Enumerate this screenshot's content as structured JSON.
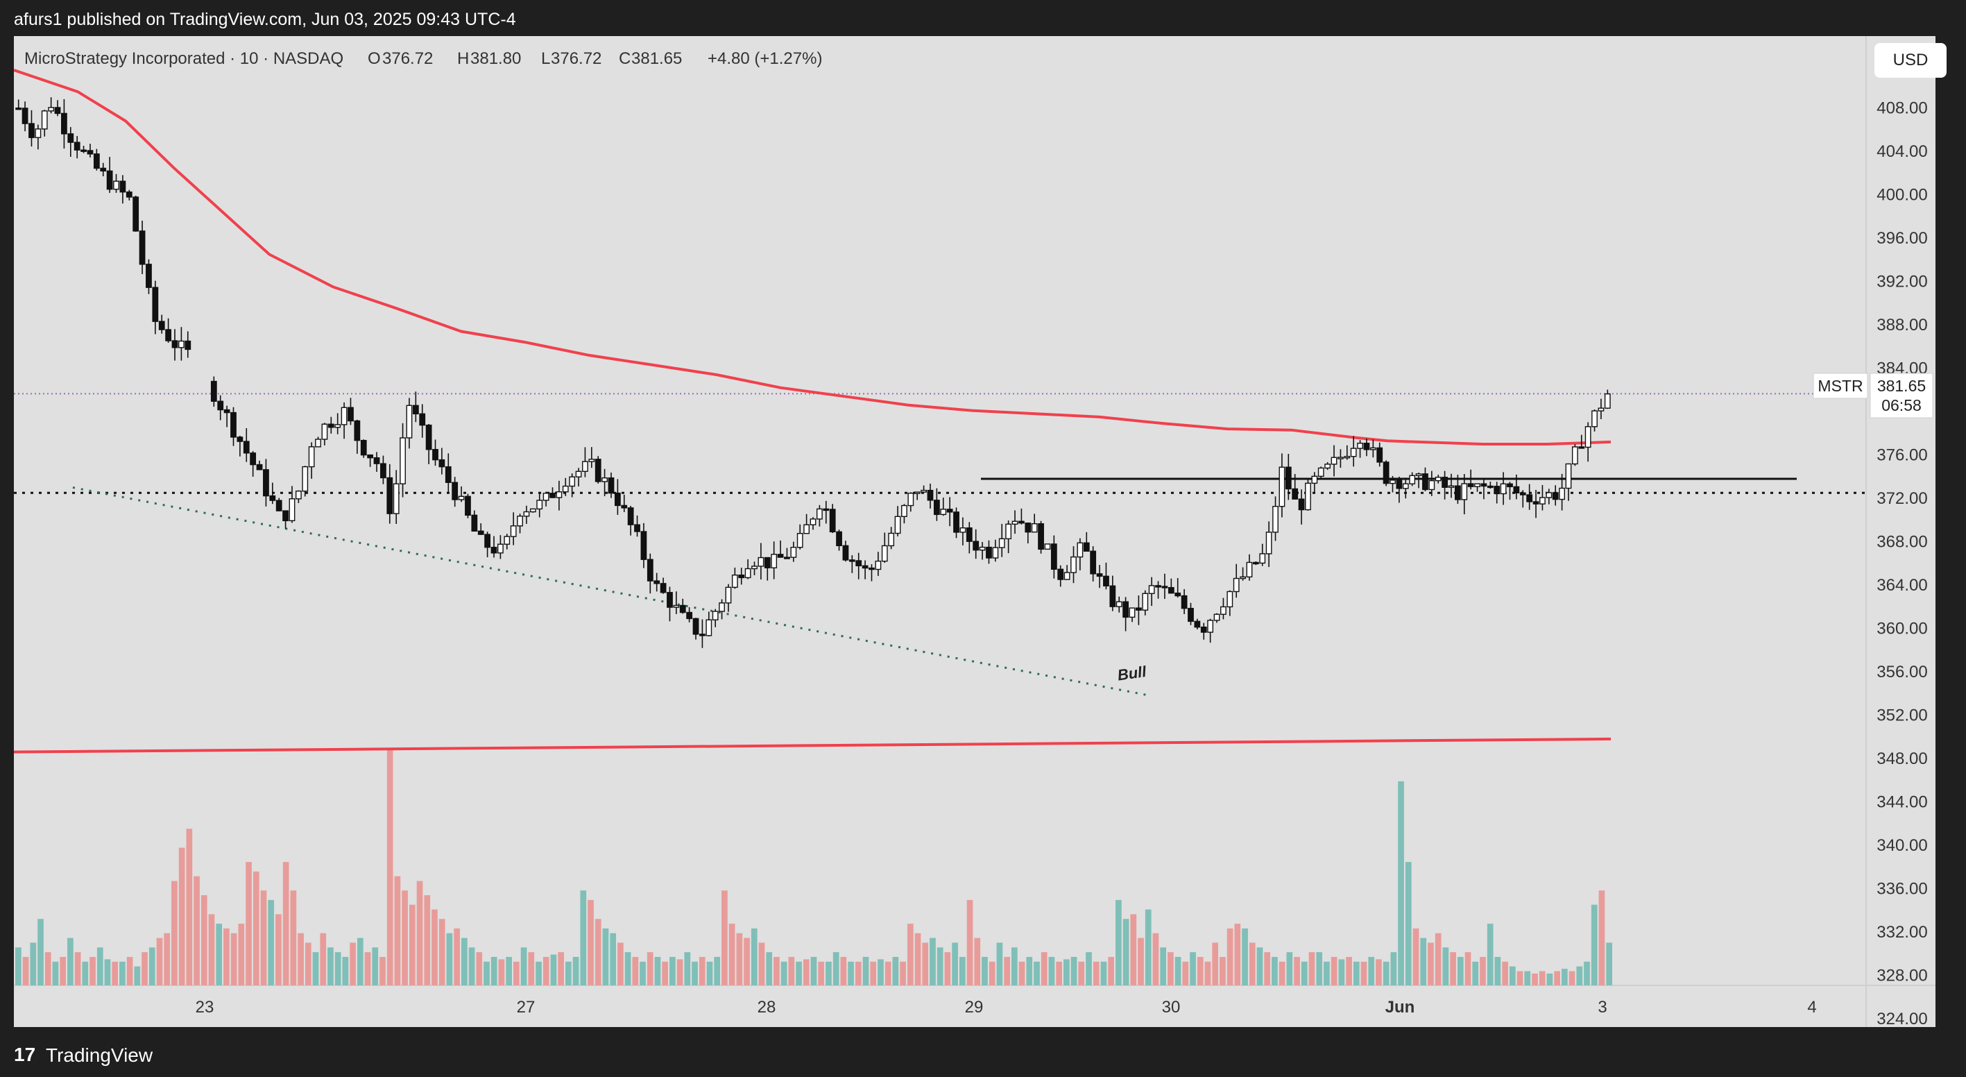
{
  "header": {
    "published_by": "afurs1 published on TradingView.com, Jun 03, 2025 09:43 UTC-4"
  },
  "footer": {
    "brand": "TradingView",
    "logo_glyph": "17"
  },
  "currency_button": "USD",
  "price_label": {
    "symbol": "MSTR",
    "price": "381.65",
    "countdown": "06:58"
  },
  "colors": {
    "bg": "#e0e0e0",
    "up_volume": "#7fbfb8",
    "down_volume": "#e89c9a",
    "ma": "#f0414d",
    "trend": "#2f6b55",
    "text": "#333333",
    "price_line": "#9a6bb0"
  },
  "chart_data": {
    "type": "candlestick",
    "instrument": "MicroStrategy Incorporated · 10 · NASDAQ",
    "ohlc_legend": {
      "open": "376.72",
      "high": "381.80",
      "low": "376.72",
      "close": "381.65",
      "change": "+4.80 (+1.27%)"
    },
    "y_axis": {
      "ticks": [
        408,
        404,
        400,
        396,
        392,
        388,
        384,
        376,
        372,
        368,
        364,
        360,
        356,
        352,
        348,
        344,
        340,
        336,
        332,
        328,
        324
      ],
      "range": [
        324,
        411.5
      ],
      "tick_format": "fixed2"
    },
    "x_axis": {
      "labels": [
        "23",
        "27",
        "28",
        "29",
        "30",
        "Jun",
        "3",
        "4"
      ]
    },
    "annotations": {
      "bull_text": "Bull",
      "support_dotted_level": 372.5,
      "resistance_solid_level": 373.8,
      "current_price_line": 381.65,
      "long_ma_level": 349.8,
      "bull_trendline": {
        "from": 373.0,
        "to": 353.8
      }
    },
    "ma_series": {
      "name": "",
      "t": [
        0,
        0.04,
        0.07,
        0.1,
        0.13,
        0.16,
        0.2,
        0.24,
        0.28,
        0.32,
        0.36,
        0.4,
        0.44,
        0.48,
        0.52,
        0.56,
        0.6,
        0.64,
        0.68,
        0.72,
        0.76,
        0.8,
        0.84,
        0.86,
        0.88,
        0.92,
        0.96,
        1.0
      ],
      "v": [
        411.5,
        409.5,
        406.8,
        402.5,
        398.5,
        394.5,
        391.5,
        389.5,
        387.4,
        386.4,
        385.2,
        384.3,
        383.4,
        382.2,
        381.4,
        380.6,
        380.1,
        379.8,
        379.5,
        378.9,
        378.4,
        378.3,
        377.6,
        377.3,
        377.2,
        377.0,
        377.0,
        377.2
      ]
    },
    "price_series": {
      "t": [
        0.0,
        0.01,
        0.02,
        0.03,
        0.045,
        0.055,
        0.07,
        0.085,
        0.1,
        0.11,
        0.12,
        0.135,
        0.15,
        0.165,
        0.175,
        0.185,
        0.195,
        0.205,
        0.215,
        0.225,
        0.235,
        0.245,
        0.26,
        0.275,
        0.29,
        0.305,
        0.315,
        0.33,
        0.345,
        0.36,
        0.375,
        0.39,
        0.4,
        0.41,
        0.42,
        0.43,
        0.44,
        0.45,
        0.46,
        0.475,
        0.49,
        0.505,
        0.52,
        0.535,
        0.55,
        0.565,
        0.58,
        0.595,
        0.61,
        0.625,
        0.64,
        0.655,
        0.67,
        0.685,
        0.7,
        0.715,
        0.73,
        0.745,
        0.76,
        0.775,
        0.785,
        0.795,
        0.805,
        0.815,
        0.83,
        0.845,
        0.86,
        0.875,
        0.89,
        0.905,
        0.92,
        0.935,
        0.95,
        0.97,
        0.985,
        1.0
      ],
      "v": [
        408.0,
        405.5,
        408.6,
        406.0,
        403.0,
        401.5,
        399.5,
        388.5,
        386.0,
        385.0,
        382.5,
        378.5,
        374.5,
        370.0,
        372.0,
        377.5,
        379.0,
        380.0,
        377.0,
        375.5,
        370.5,
        381.0,
        376.0,
        372.5,
        368.0,
        367.0,
        371.0,
        371.5,
        374.0,
        375.0,
        372.5,
        368.0,
        364.0,
        362.5,
        360.5,
        359.5,
        362.0,
        364.5,
        366.5,
        366.0,
        367.5,
        372.0,
        367.0,
        365.0,
        369.0,
        373.0,
        371.0,
        368.5,
        367.0,
        370.5,
        369.0,
        365.0,
        367.5,
        363.0,
        361.0,
        364.0,
        362.5,
        360.0,
        363.0,
        365.5,
        367.0,
        374.5,
        371.0,
        373.5,
        375.5,
        378.0,
        374.0,
        373.5,
        373.5,
        372.5,
        373.0,
        373.0,
        372.0,
        372.5,
        378.0,
        381.65
      ]
    },
    "volume": {
      "heights": [
        0.16,
        0.12,
        0.18,
        0.28,
        0.14,
        0.1,
        0.12,
        0.2,
        0.14,
        0.1,
        0.12,
        0.16,
        0.11,
        0.1,
        0.1,
        0.12,
        0.08,
        0.14,
        0.16,
        0.2,
        0.22,
        0.44,
        0.58,
        0.66,
        0.46,
        0.38,
        0.3,
        0.26,
        0.24,
        0.22,
        0.26,
        0.52,
        0.48,
        0.4,
        0.36,
        0.3,
        0.52,
        0.4,
        0.22,
        0.18,
        0.14,
        0.22,
        0.16,
        0.14,
        0.12,
        0.18,
        0.2,
        0.14,
        0.16,
        0.12,
        1.0,
        0.46,
        0.4,
        0.34,
        0.44,
        0.38,
        0.32,
        0.28,
        0.22,
        0.24,
        0.2,
        0.16,
        0.14,
        0.1,
        0.12,
        0.11,
        0.12,
        0.1,
        0.16,
        0.14,
        0.1,
        0.12,
        0.13,
        0.14,
        0.1,
        0.12,
        0.4,
        0.36,
        0.28,
        0.24,
        0.22,
        0.18,
        0.14,
        0.12,
        0.1,
        0.14,
        0.12,
        0.1,
        0.12,
        0.11,
        0.14,
        0.1,
        0.12,
        0.1,
        0.12,
        0.4,
        0.26,
        0.22,
        0.2,
        0.24,
        0.18,
        0.14,
        0.12,
        0.1,
        0.12,
        0.1,
        0.11,
        0.12,
        0.1,
        0.1,
        0.14,
        0.12,
        0.1,
        0.1,
        0.12,
        0.1,
        0.11,
        0.1,
        0.12,
        0.1,
        0.26,
        0.22,
        0.18,
        0.2,
        0.16,
        0.14,
        0.18,
        0.12,
        0.36,
        0.2,
        0.12,
        0.1,
        0.18,
        0.12,
        0.16,
        0.1,
        0.12,
        0.1,
        0.14,
        0.12,
        0.1,
        0.11,
        0.12,
        0.1,
        0.14,
        0.1,
        0.1,
        0.12,
        0.36,
        0.28,
        0.3,
        0.2,
        0.32,
        0.22,
        0.16,
        0.14,
        0.12,
        0.1,
        0.14,
        0.12,
        0.1,
        0.18,
        0.12,
        0.24,
        0.26,
        0.24,
        0.18,
        0.16,
        0.14,
        0.12,
        0.1,
        0.14,
        0.12,
        0.1,
        0.14,
        0.14,
        0.1,
        0.12,
        0.11,
        0.12,
        0.1,
        0.1,
        0.12,
        0.11,
        0.1,
        0.14,
        0.86,
        0.52,
        0.24,
        0.2,
        0.18,
        0.22,
        0.16,
        0.14,
        0.12,
        0.14,
        0.1,
        0.12,
        0.26,
        0.12,
        0.1,
        0.08,
        0.06,
        0.06,
        0.05,
        0.06,
        0.05,
        0.06,
        0.07,
        0.06,
        0.08,
        0.1,
        0.34,
        0.4,
        0.18
      ],
      "up": [
        1,
        0,
        1,
        1,
        0,
        1,
        0,
        1,
        0,
        1,
        0,
        1,
        1,
        0,
        1,
        0,
        1,
        0,
        1,
        0,
        0,
        0,
        0,
        0,
        0,
        0,
        0,
        1,
        0,
        0,
        0,
        0,
        0,
        0,
        1,
        0,
        0,
        0,
        0,
        0,
        1,
        0,
        1,
        1,
        1,
        0,
        1,
        0,
        1,
        0,
        0,
        0,
        0,
        0,
        0,
        0,
        0,
        0,
        1,
        0,
        1,
        1,
        0,
        1,
        1,
        0,
        1,
        0,
        1,
        0,
        1,
        0,
        1,
        0,
        1,
        1,
        1,
        0,
        0,
        1,
        1,
        0,
        1,
        0,
        1,
        0,
        1,
        0,
        1,
        0,
        1,
        1,
        0,
        1,
        1,
        0,
        0,
        0,
        0,
        1,
        0,
        1,
        0,
        1,
        0,
        1,
        0,
        1,
        0,
        1,
        1,
        0,
        1,
        0,
        1,
        0,
        1,
        0,
        1,
        0,
        0,
        0,
        0,
        1,
        1,
        0,
        1,
        1,
        0,
        0,
        1,
        0,
        1,
        0,
        1,
        0,
        1,
        1,
        0,
        1,
        0,
        1,
        1,
        0,
        1,
        0,
        1,
        0,
        1,
        1,
        0,
        0,
        1,
        0,
        1,
        0,
        1,
        0,
        1,
        0,
        0,
        0,
        0,
        0,
        0,
        1,
        0,
        1,
        0,
        1,
        0,
        1,
        0,
        1,
        0,
        1,
        1,
        0,
        1,
        0,
        1,
        0,
        1,
        0,
        1,
        1,
        1,
        1,
        0,
        1,
        0,
        0,
        1,
        0,
        1,
        0,
        1,
        0,
        1,
        1,
        0,
        1,
        0,
        1,
        0,
        0,
        1,
        0,
        1,
        0,
        1,
        1,
        1,
        0,
        1
      ]
    }
  }
}
